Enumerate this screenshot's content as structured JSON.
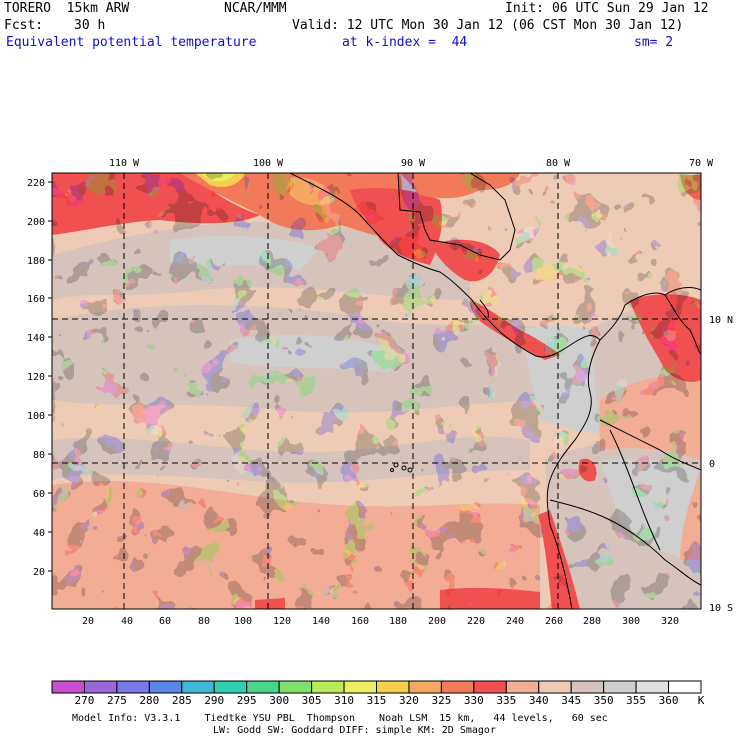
{
  "header": {
    "model": "TORERO  15km ARW",
    "org": "NCAR/MMM",
    "init": "Init: 06 UTC Sun 29 Jan 12",
    "fcst_label": "Fcst:",
    "fcst_value": "30 h",
    "valid": "Valid: 12 UTC Mon 30 Jan 12 (06 CST Mon 30 Jan 12)",
    "field": "Equivalent potential temperature",
    "level": "at k-index =  44",
    "smoothing": "sm= 2"
  },
  "map": {
    "top_lon_labels": [
      "110 W",
      "100 W",
      "90 W",
      "80 W",
      "70 W"
    ],
    "left_y_ticks": [
      "220",
      "200",
      "180",
      "160",
      "140",
      "120",
      "100",
      "80",
      "60",
      "40",
      "20"
    ],
    "bottom_x_ticks": [
      "20",
      "40",
      "60",
      "80",
      "100",
      "120",
      "140",
      "160",
      "180",
      "200",
      "220",
      "240",
      "260",
      "280",
      "300",
      "320"
    ],
    "right_lat_labels": [
      "10 N",
      "0",
      "10 S"
    ]
  },
  "colorbar": {
    "labels": [
      "270",
      "275",
      "280",
      "285",
      "290",
      "295",
      "300",
      "305",
      "310",
      "315",
      "320",
      "325",
      "330",
      "335",
      "340",
      "345",
      "350",
      "355",
      "360"
    ],
    "unit": "K",
    "colors": [
      "#c94fd0",
      "#9b66d9",
      "#7a78e6",
      "#5a86e9",
      "#3fb7d6",
      "#2dd1b2",
      "#47d68a",
      "#7ee068",
      "#b9ec58",
      "#e9ef5e",
      "#f6d04c",
      "#f5a860",
      "#f27a5a",
      "#f05050",
      "#f2ad94",
      "#eecbb5",
      "#d6c3bc",
      "#cfcfcf",
      "#e0e0e0",
      "#ffffff"
    ]
  },
  "footer": {
    "line1": "Model Info: V3.3.1    Tiedtke YSU PBL  Thompson    Noah LSM  15 km,   44 levels,   60 sec",
    "line2": "LW: Godd SW: Goddard DIFF: simple KM: 2D Smagor"
  }
}
